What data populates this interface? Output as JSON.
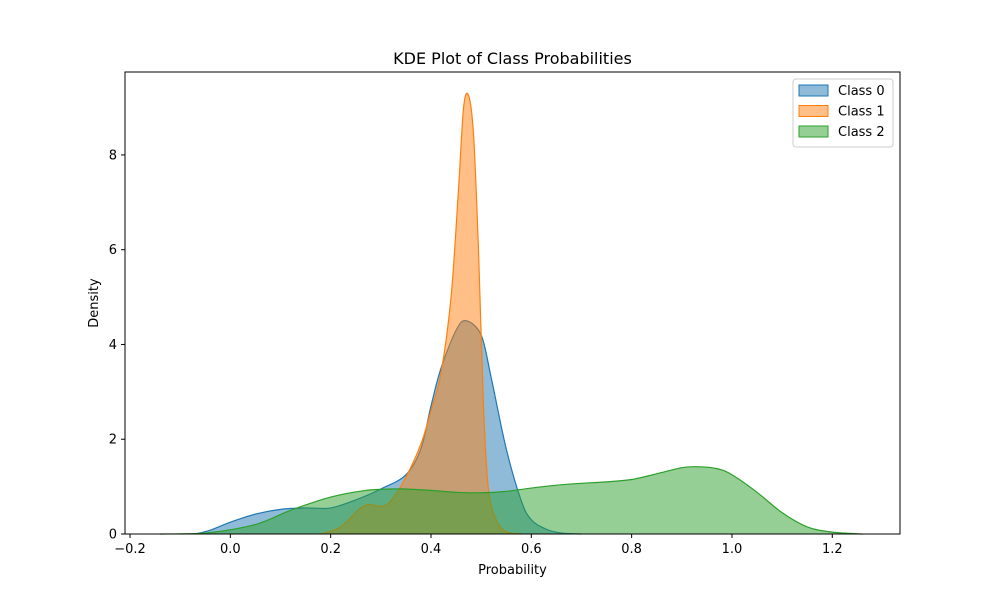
{
  "chart_data": {
    "type": "area",
    "title": "KDE Plot of Class Probabilities",
    "xlabel": "Probability",
    "ylabel": "Density",
    "xlim": [
      -0.21,
      1.335
    ],
    "ylim": [
      0,
      9.75
    ],
    "xticks": [
      -0.2,
      0.0,
      0.2,
      0.4,
      0.6,
      0.8,
      1.0,
      1.2
    ],
    "xtick_labels": [
      "−0.2",
      "0.0",
      "0.2",
      "0.4",
      "0.6",
      "0.8",
      "1.0",
      "1.2"
    ],
    "yticks": [
      0,
      2,
      4,
      6,
      8
    ],
    "ytick_labels": [
      "0",
      "2",
      "4",
      "6",
      "8"
    ],
    "grid": false,
    "legend_position": "top-right",
    "series": [
      {
        "name": "Class 0",
        "color": "#1f77b4",
        "x": [
          -0.07,
          -0.04,
          0.0,
          0.05,
          0.1,
          0.15,
          0.2,
          0.25,
          0.3,
          0.35,
          0.38,
          0.4,
          0.42,
          0.45,
          0.47,
          0.5,
          0.52,
          0.55,
          0.58,
          0.6,
          0.63,
          0.66,
          0.7
        ],
        "y": [
          0.0,
          0.08,
          0.25,
          0.42,
          0.52,
          0.55,
          0.55,
          0.72,
          0.95,
          1.25,
          1.8,
          2.7,
          3.5,
          4.3,
          4.5,
          4.2,
          3.3,
          1.8,
          0.7,
          0.3,
          0.1,
          0.02,
          0.0
        ]
      },
      {
        "name": "Class 1",
        "color": "#ff7f0e",
        "x": [
          0.18,
          0.22,
          0.26,
          0.28,
          0.3,
          0.32,
          0.35,
          0.38,
          0.4,
          0.42,
          0.44,
          0.455,
          0.465,
          0.475,
          0.485,
          0.495,
          0.505,
          0.515,
          0.53,
          0.545,
          0.56,
          0.58
        ],
        "y": [
          0.0,
          0.15,
          0.55,
          0.62,
          0.58,
          0.7,
          1.2,
          1.9,
          2.6,
          3.4,
          5.0,
          7.3,
          9.0,
          9.25,
          8.4,
          5.9,
          2.6,
          0.9,
          0.3,
          0.08,
          0.02,
          0.0
        ]
      },
      {
        "name": "Class 2",
        "color": "#2ca02c",
        "x": [
          -0.14,
          -0.05,
          0.05,
          0.12,
          0.2,
          0.27,
          0.32,
          0.35,
          0.4,
          0.45,
          0.5,
          0.55,
          0.6,
          0.65,
          0.7,
          0.75,
          0.8,
          0.85,
          0.9,
          0.93,
          0.97,
          1.0,
          1.05,
          1.1,
          1.15,
          1.2,
          1.26
        ],
        "y": [
          0.0,
          0.02,
          0.2,
          0.5,
          0.78,
          0.92,
          0.95,
          0.95,
          0.92,
          0.88,
          0.87,
          0.9,
          0.97,
          1.03,
          1.07,
          1.1,
          1.15,
          1.27,
          1.4,
          1.42,
          1.38,
          1.25,
          0.88,
          0.45,
          0.15,
          0.04,
          0.0
        ]
      }
    ]
  }
}
